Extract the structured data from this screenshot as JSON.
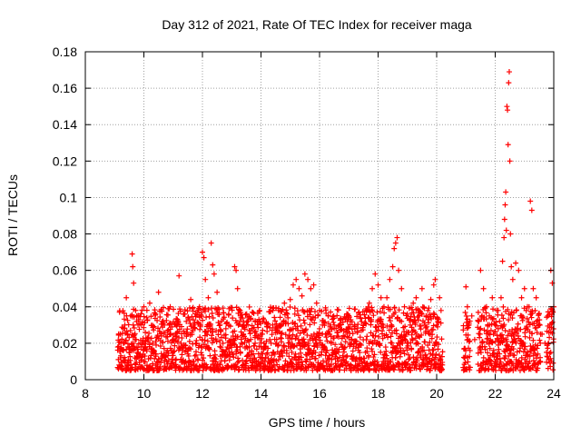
{
  "chart_data": {
    "type": "scatter",
    "title": "Day 312 of 2021, Rate Of TEC Index for receiver maga",
    "xlabel": "GPS time / hours",
    "ylabel": "ROTI / TECUs",
    "xlim": [
      8,
      24
    ],
    "ylim": [
      0,
      0.18
    ],
    "x_ticks": [
      8,
      10,
      12,
      14,
      16,
      18,
      20,
      22,
      24
    ],
    "y_ticks": [
      0,
      0.02,
      0.04,
      0.06,
      0.08,
      0.1,
      0.12,
      0.14,
      0.16,
      0.18
    ],
    "x_tick_labels": [
      "8",
      "10",
      "12",
      "14",
      "16",
      "18",
      "20",
      "22",
      "24"
    ],
    "y_tick_labels": [
      "0",
      "0.02",
      "0.04",
      "0.06",
      "0.08",
      "0.1",
      "0.12",
      "0.14",
      "0.16",
      "0.18"
    ],
    "grid": true,
    "marker": "+",
    "color": "#ff0000",
    "points": [
      [
        9.2,
        0.012
      ],
      [
        9.3,
        0.02
      ],
      [
        9.35,
        0.03
      ],
      [
        9.4,
        0.045
      ],
      [
        9.45,
        0.025
      ],
      [
        9.5,
        0.015
      ],
      [
        9.55,
        0.035
      ],
      [
        9.6,
        0.069
      ],
      [
        9.62,
        0.062
      ],
      [
        9.65,
        0.053
      ],
      [
        9.7,
        0.022
      ],
      [
        9.8,
        0.03
      ],
      [
        9.9,
        0.018
      ],
      [
        10.0,
        0.04
      ],
      [
        10.05,
        0.026
      ],
      [
        10.1,
        0.034
      ],
      [
        10.2,
        0.042
      ],
      [
        10.3,
        0.02
      ],
      [
        10.4,
        0.036
      ],
      [
        10.5,
        0.048
      ],
      [
        10.6,
        0.024
      ],
      [
        10.7,
        0.03
      ],
      [
        10.8,
        0.016
      ],
      [
        10.9,
        0.04
      ],
      [
        11.0,
        0.022
      ],
      [
        11.1,
        0.03
      ],
      [
        11.2,
        0.057
      ],
      [
        11.3,
        0.018
      ],
      [
        11.4,
        0.036
      ],
      [
        11.5,
        0.025
      ],
      [
        11.6,
        0.044
      ],
      [
        11.7,
        0.03
      ],
      [
        11.8,
        0.02
      ],
      [
        11.9,
        0.04
      ],
      [
        12.0,
        0.07
      ],
      [
        12.05,
        0.067
      ],
      [
        12.1,
        0.055
      ],
      [
        12.2,
        0.045
      ],
      [
        12.3,
        0.075
      ],
      [
        12.35,
        0.063
      ],
      [
        12.4,
        0.058
      ],
      [
        12.5,
        0.048
      ],
      [
        12.6,
        0.03
      ],
      [
        12.7,
        0.02
      ],
      [
        12.8,
        0.028
      ],
      [
        12.9,
        0.036
      ],
      [
        13.0,
        0.015
      ],
      [
        13.1,
        0.062
      ],
      [
        13.15,
        0.06
      ],
      [
        13.2,
        0.05
      ],
      [
        13.3,
        0.035
      ],
      [
        13.4,
        0.025
      ],
      [
        13.5,
        0.03
      ],
      [
        13.6,
        0.018
      ],
      [
        13.7,
        0.028
      ],
      [
        13.8,
        0.02
      ],
      [
        13.9,
        0.024
      ],
      [
        14.0,
        0.018
      ],
      [
        14.1,
        0.02
      ],
      [
        14.2,
        0.014
      ],
      [
        14.3,
        0.022
      ],
      [
        14.4,
        0.03
      ],
      [
        14.5,
        0.028
      ],
      [
        14.6,
        0.038
      ],
      [
        14.7,
        0.03
      ],
      [
        14.8,
        0.042
      ],
      [
        14.9,
        0.036
      ],
      [
        15.0,
        0.044
      ],
      [
        15.1,
        0.052
      ],
      [
        15.2,
        0.055
      ],
      [
        15.3,
        0.05
      ],
      [
        15.4,
        0.046
      ],
      [
        15.5,
        0.058
      ],
      [
        15.6,
        0.055
      ],
      [
        15.7,
        0.05
      ],
      [
        15.8,
        0.052
      ],
      [
        15.9,
        0.042
      ],
      [
        16.0,
        0.038
      ],
      [
        16.1,
        0.03
      ],
      [
        16.2,
        0.025
      ],
      [
        16.3,
        0.035
      ],
      [
        16.4,
        0.02
      ],
      [
        16.5,
        0.03
      ],
      [
        16.6,
        0.024
      ],
      [
        16.7,
        0.03
      ],
      [
        16.8,
        0.018
      ],
      [
        16.9,
        0.034
      ],
      [
        17.0,
        0.028
      ],
      [
        17.1,
        0.022
      ],
      [
        17.2,
        0.03
      ],
      [
        17.3,
        0.026
      ],
      [
        17.4,
        0.034
      ],
      [
        17.5,
        0.03
      ],
      [
        17.6,
        0.038
      ],
      [
        17.7,
        0.042
      ],
      [
        17.8,
        0.05
      ],
      [
        17.9,
        0.058
      ],
      [
        18.0,
        0.052
      ],
      [
        18.1,
        0.045
      ],
      [
        18.2,
        0.04
      ],
      [
        18.3,
        0.045
      ],
      [
        18.4,
        0.055
      ],
      [
        18.5,
        0.062
      ],
      [
        18.55,
        0.072
      ],
      [
        18.6,
        0.075
      ],
      [
        18.65,
        0.078
      ],
      [
        18.7,
        0.06
      ],
      [
        18.8,
        0.05
      ],
      [
        18.9,
        0.04
      ],
      [
        19.0,
        0.036
      ],
      [
        19.1,
        0.03
      ],
      [
        19.2,
        0.042
      ],
      [
        19.3,
        0.045
      ],
      [
        19.4,
        0.038
      ],
      [
        19.5,
        0.05
      ],
      [
        19.6,
        0.03
      ],
      [
        19.7,
        0.038
      ],
      [
        19.8,
        0.044
      ],
      [
        19.9,
        0.052
      ],
      [
        19.95,
        0.055
      ],
      [
        20.0,
        0.03
      ],
      [
        20.1,
        0.045
      ],
      [
        20.15,
        0.038
      ],
      [
        21.0,
        0.051
      ],
      [
        21.05,
        0.04
      ],
      [
        21.1,
        0.03
      ],
      [
        21.2,
        0.035
      ],
      [
        21.3,
        0.022
      ],
      [
        21.5,
        0.06
      ],
      [
        21.6,
        0.05
      ],
      [
        21.7,
        0.04
      ],
      [
        21.8,
        0.035
      ],
      [
        21.9,
        0.045
      ],
      [
        22.0,
        0.03
      ],
      [
        22.1,
        0.038
      ],
      [
        22.2,
        0.045
      ],
      [
        22.25,
        0.065
      ],
      [
        22.3,
        0.078
      ],
      [
        22.32,
        0.088
      ],
      [
        22.34,
        0.096
      ],
      [
        22.36,
        0.103
      ],
      [
        22.38,
        0.082
      ],
      [
        22.4,
        0.15
      ],
      [
        22.42,
        0.148
      ],
      [
        22.44,
        0.129
      ],
      [
        22.46,
        0.163
      ],
      [
        22.48,
        0.169
      ],
      [
        22.5,
        0.12
      ],
      [
        22.52,
        0.08
      ],
      [
        22.55,
        0.062
      ],
      [
        22.6,
        0.055
      ],
      [
        22.7,
        0.064
      ],
      [
        22.8,
        0.06
      ],
      [
        22.9,
        0.045
      ],
      [
        23.0,
        0.05
      ],
      [
        23.1,
        0.04
      ],
      [
        23.2,
        0.098
      ],
      [
        23.25,
        0.093
      ],
      [
        23.3,
        0.05
      ],
      [
        23.4,
        0.045
      ],
      [
        23.5,
        0.03
      ],
      [
        23.6,
        0.025
      ],
      [
        23.7,
        0.02
      ],
      [
        23.8,
        0.035
      ],
      [
        23.9,
        0.06
      ],
      [
        23.95,
        0.053
      ],
      [
        24.0,
        0.04
      ]
    ],
    "dense_band": {
      "segments": [
        [
          9.1,
          20.2
        ],
        [
          20.9,
          21.15
        ],
        [
          21.4,
          23.55
        ],
        [
          23.75,
          24.0
        ]
      ],
      "range": [
        0.005,
        0.04
      ]
    }
  }
}
